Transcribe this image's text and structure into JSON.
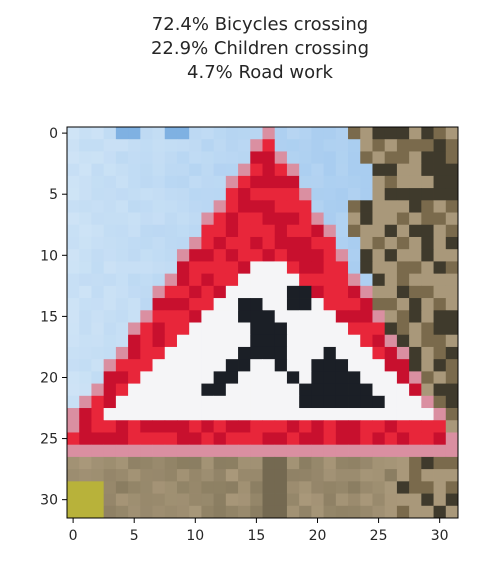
{
  "chart_data": {
    "type": "image",
    "title_lines": [
      "72.4% Bicycles crossing",
      "22.9% Children crossing",
      "4.7% Road work"
    ],
    "image_grid": {
      "rows": 32,
      "cols": 32,
      "content": "road-work-warning-sign"
    },
    "xlim": [
      -0.5,
      31.5
    ],
    "ylim": [
      31.5,
      -0.5
    ],
    "xticks": [
      0,
      5,
      10,
      15,
      20,
      25,
      30
    ],
    "yticks": [
      0,
      5,
      10,
      15,
      20,
      25,
      30
    ],
    "grid": false,
    "colors": {
      "sky_light": "#cfe4f6",
      "sky": "#a9cdf0",
      "sky_dark": "#7fb1e2",
      "sign_red": "#e8263a",
      "sign_red_dark": "#c8102e",
      "sign_white": "#f5f5f7",
      "figure_black": "#1b1f26",
      "tree_dark": "#3f3a2c",
      "tree_mid": "#7a6a4c",
      "tree_light": "#a9987a",
      "ground": "#8a7d61",
      "grass": "#b8b23a"
    }
  }
}
